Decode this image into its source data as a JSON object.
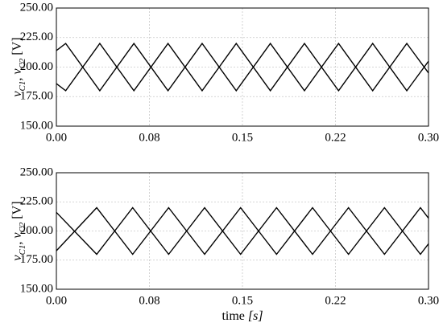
{
  "chart_data": [
    {
      "type": "line",
      "ylabel": [
        "v",
        "C1",
        ", v",
        "C2",
        " [V]"
      ],
      "x": [
        0,
        0.0075,
        0.035,
        0.0625,
        0.09,
        0.1175,
        0.145,
        0.1725,
        0.2,
        0.2275,
        0.255,
        0.2825,
        0.3
      ],
      "series": [
        {
          "color": "#000000",
          "values": [
            214,
            220,
            180,
            220,
            180,
            220,
            180,
            220,
            180,
            220,
            180,
            220,
            195
          ]
        },
        {
          "color": "#000000",
          "values": [
            186,
            180,
            220,
            180,
            220,
            180,
            220,
            180,
            220,
            180,
            220,
            180,
            205
          ]
        }
      ],
      "xlim": [
        0,
        0.3
      ],
      "xticks": [
        {
          "value": 0,
          "label": "0.00"
        },
        {
          "value": 0.075,
          "label": "0.08"
        },
        {
          "value": 0.15,
          "label": "0.15"
        },
        {
          "value": 0.225,
          "label": "0.22"
        },
        {
          "value": 0.3,
          "label": "0.30"
        }
      ],
      "ylim": [
        150,
        250
      ],
      "yticks": [
        {
          "value": 150,
          "label": "150.00"
        },
        {
          "value": 175,
          "label": "175.00"
        },
        {
          "value": 200,
          "label": "200.00"
        },
        {
          "value": 225,
          "label": "225.00"
        },
        {
          "value": 250,
          "label": "250.00"
        }
      ],
      "grid": true
    },
    {
      "type": "line",
      "ylabel": [
        "v",
        "C1",
        ", v",
        "C2",
        " [V]"
      ],
      "xlabel": [
        "time ",
        "[s]"
      ],
      "x": [
        0,
        0.0325,
        0.0615,
        0.0905,
        0.1195,
        0.1485,
        0.1775,
        0.2065,
        0.2355,
        0.2645,
        0.2935,
        0.3
      ],
      "series": [
        {
          "color": "#000000",
          "values": [
            216,
            180,
            220,
            180,
            220,
            180,
            220,
            180,
            220,
            180,
            220,
            211
          ]
        },
        {
          "color": "#000000",
          "values": [
            183,
            220,
            180,
            220,
            180,
            220,
            180,
            220,
            180,
            220,
            180,
            189
          ]
        }
      ],
      "xlim": [
        0,
        0.3
      ],
      "xticks": [
        {
          "value": 0,
          "label": "0.00"
        },
        {
          "value": 0.075,
          "label": "0.08"
        },
        {
          "value": 0.15,
          "label": "0.15"
        },
        {
          "value": 0.225,
          "label": "0.22"
        },
        {
          "value": 0.3,
          "label": "0.30"
        }
      ],
      "ylim": [
        150,
        250
      ],
      "yticks": [
        {
          "value": 150,
          "label": "150.00"
        },
        {
          "value": 175,
          "label": "175.00"
        },
        {
          "value": 200,
          "label": "200.00"
        },
        {
          "value": 225,
          "label": "225.00"
        },
        {
          "value": 250,
          "label": "250.00"
        }
      ],
      "grid": true
    }
  ]
}
